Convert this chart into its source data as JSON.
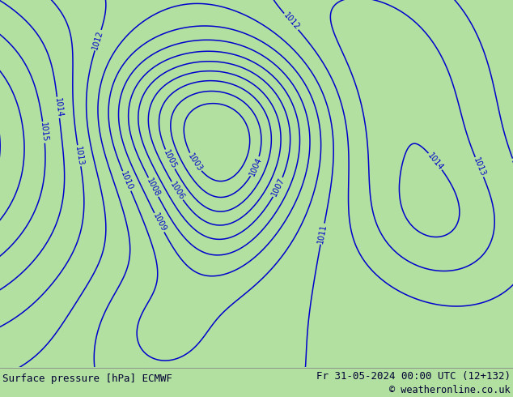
{
  "title_left": "Surface pressure [hPa] ECMWF",
  "title_right": "Fr 31-05-2024 00:00 UTC (12+132)",
  "copyright": "© weatheronline.co.uk",
  "land_color": "#b2e0a0",
  "sea_color": "#d8d8d8",
  "bg_color": "#b2e0a0",
  "contour_color": "#0000cc",
  "contour_color_red": "#cc0000",
  "contour_color_black": "#111111",
  "border_color": "#555555",
  "text_color": "#000033",
  "bottom_bar_color": "#ffffff",
  "title_fontsize": 9,
  "label_fontsize": 7,
  "figsize": [
    6.34,
    4.9
  ],
  "dpi": 100,
  "extent": [
    -10.5,
    30.5,
    27.5,
    51.5
  ]
}
